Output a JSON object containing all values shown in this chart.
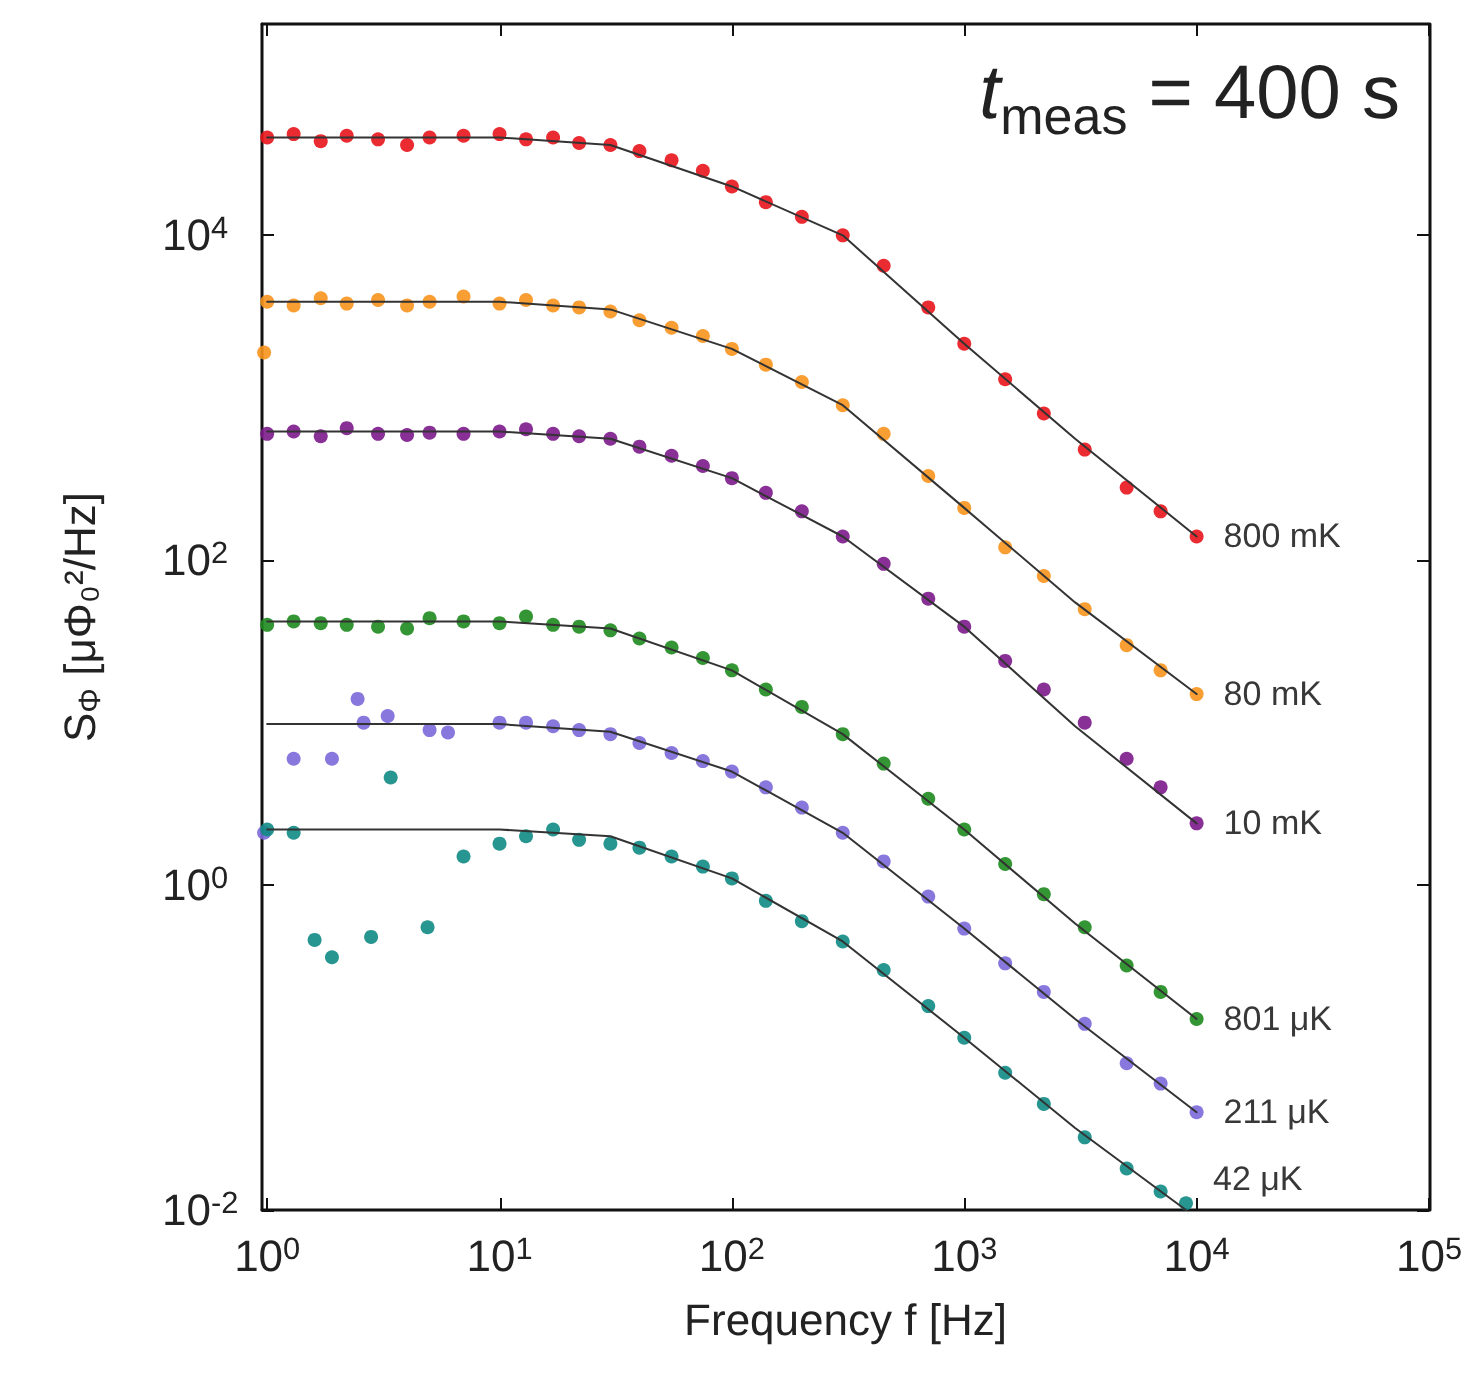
{
  "chart_data": {
    "type": "scatter",
    "xlabel": "Frequency f [Hz]",
    "ylabel": "S$_{Φ}$ [μΦ₀²/Hz]",
    "annotations": [
      "t$_{meas}$ = 400 s"
    ],
    "log": "xy",
    "grid": false,
    "legend": false,
    "marker": "circle",
    "xlim": [
      0.95,
      100000
    ],
    "ylim": [
      0.01,
      200000
    ],
    "xticks": [
      {
        "value": 1,
        "label": "10$^{0}$"
      },
      {
        "value": 10,
        "label": "10$^{1}$"
      },
      {
        "value": 100,
        "label": "10$^{2}$"
      },
      {
        "value": 1000,
        "label": "10$^{3}$"
      },
      {
        "value": 10000,
        "label": "10$^{4}$"
      },
      {
        "value": 100000,
        "label": "10$^{5}$"
      }
    ],
    "yticks": [
      {
        "value": 0.01,
        "label": "10$^{-2}$"
      },
      {
        "value": 1,
        "label": "10$^{0}$"
      },
      {
        "value": 100,
        "label": "10$^{2}$"
      },
      {
        "value": 10000,
        "label": "10$^{4}$"
      }
    ],
    "series": [
      {
        "name": "800 mK",
        "color": "#e8141c",
        "x": [
          1,
          1.3,
          1.7,
          2.2,
          3,
          4,
          5,
          7,
          10,
          13,
          17,
          22,
          30,
          40,
          55,
          75,
          100,
          140,
          200,
          300,
          450,
          700,
          1000,
          1500,
          2200,
          3300,
          5000,
          7000,
          10000
        ],
        "values": [
          40000,
          42000,
          38000,
          41000,
          39000,
          36000,
          40000,
          41000,
          42000,
          39000,
          40000,
          37000,
          36000,
          33000,
          29000,
          25000,
          20000,
          16000,
          13000,
          10000,
          6500,
          3600,
          2150,
          1300,
          800,
          480,
          280,
          200,
          140
        ]
      },
      {
        "name": "80 mK",
        "color": "#f7941d",
        "x": [
          0.97,
          1,
          1.3,
          1.7,
          2.2,
          3,
          4,
          5,
          7,
          10,
          13,
          17,
          22,
          30,
          40,
          55,
          75,
          100,
          140,
          200,
          300,
          450,
          700,
          1000,
          1500,
          2200,
          3300,
          5000,
          7000,
          10000
        ],
        "values": [
          1900,
          3900,
          3700,
          4100,
          3800,
          4000,
          3700,
          3900,
          4200,
          3800,
          4000,
          3700,
          3600,
          3400,
          3000,
          2700,
          2400,
          2000,
          1600,
          1250,
          900,
          600,
          330,
          210,
          120,
          80,
          50,
          30,
          21,
          15
        ]
      },
      {
        "name": "10 mK",
        "color": "#7b1a8a",
        "x": [
          1,
          1.3,
          1.7,
          2.2,
          3,
          4,
          5,
          7,
          10,
          13,
          17,
          22,
          30,
          40,
          55,
          75,
          100,
          140,
          200,
          300,
          450,
          700,
          1000,
          1500,
          2200,
          3300,
          5000,
          7000,
          10000
        ],
        "values": [
          600,
          620,
          580,
          650,
          600,
          590,
          610,
          600,
          620,
          640,
          600,
          580,
          560,
          500,
          440,
          380,
          320,
          260,
          200,
          140,
          95,
          58,
          39,
          24,
          16,
          10,
          6,
          4,
          2.4
        ]
      },
      {
        "name": "801 μK",
        "color": "#1e8a1e",
        "x": [
          1,
          1.3,
          1.7,
          2.2,
          3,
          4,
          5,
          7,
          10,
          13,
          17,
          22,
          30,
          40,
          55,
          75,
          100,
          140,
          200,
          300,
          450,
          700,
          1000,
          1500,
          2200,
          3300,
          5000,
          7000,
          10000
        ],
        "values": [
          40,
          42,
          41,
          40,
          39,
          38,
          44,
          42,
          41,
          45,
          40,
          39,
          37,
          33,
          29,
          25,
          21,
          16,
          12.5,
          8.5,
          5.6,
          3.4,
          2.2,
          1.35,
          0.88,
          0.55,
          0.32,
          0.22,
          0.15
        ]
      },
      {
        "name": "211 μK",
        "color": "#7b68d8",
        "x": [
          0.97,
          1.3,
          1.9,
          2.45,
          2.6,
          3.3,
          5,
          6,
          10,
          13,
          17,
          22,
          30,
          40,
          55,
          75,
          100,
          140,
          200,
          300,
          450,
          700,
          1000,
          1500,
          2200,
          3300,
          5000,
          7000,
          10000
        ],
        "values": [
          2.1,
          6,
          6,
          14,
          10,
          11,
          9,
          8.7,
          10,
          10,
          9.5,
          9,
          8.5,
          7.5,
          6.5,
          5.8,
          5,
          4,
          3,
          2.1,
          1.4,
          0.85,
          0.54,
          0.33,
          0.22,
          0.14,
          0.08,
          0.06,
          0.04
        ]
      },
      {
        "name": "42 μK",
        "color": "#0f8a84",
        "x": [
          1,
          1.3,
          1.6,
          1.9,
          2.8,
          3.4,
          4.9,
          7,
          10,
          13,
          17,
          22,
          30,
          40,
          55,
          75,
          100,
          140,
          200,
          300,
          450,
          700,
          1000,
          1500,
          2200,
          3300,
          5000,
          7000,
          9000
        ],
        "values": [
          2.2,
          2.1,
          0.46,
          0.36,
          0.48,
          4.6,
          0.55,
          1.5,
          1.8,
          2.0,
          2.2,
          1.9,
          1.8,
          1.7,
          1.5,
          1.3,
          1.1,
          0.8,
          0.6,
          0.45,
          0.3,
          0.18,
          0.115,
          0.07,
          0.045,
          0.028,
          0.018,
          0.013,
          0.011
        ]
      },
      {
        "type": "line",
        "color": "#333333",
        "x": [
          1,
          10,
          30,
          100,
          300,
          1000,
          3000,
          10000
        ],
        "marker": "none",
        "values": [
          40000,
          40000,
          36000,
          20000,
          10000,
          2150,
          560,
          140
        ]
      },
      {
        "type": "line",
        "color": "#333333",
        "x": [
          1,
          10,
          30,
          100,
          300,
          1000,
          3000,
          10000
        ],
        "marker": "none",
        "values": [
          3900,
          3900,
          3500,
          2000,
          900,
          210,
          55,
          15
        ]
      },
      {
        "type": "line",
        "color": "#333333",
        "x": [
          1,
          10,
          30,
          100,
          300,
          1000,
          3000,
          10000
        ],
        "marker": "none",
        "values": [
          620,
          620,
          560,
          320,
          140,
          39,
          9.5,
          2.4
        ]
      },
      {
        "type": "line",
        "color": "#333333",
        "x": [
          1,
          10,
          30,
          100,
          300,
          1000,
          3000,
          10000
        ],
        "marker": "none",
        "values": [
          42,
          42,
          38,
          21,
          8.5,
          2.2,
          0.58,
          0.15
        ]
      },
      {
        "type": "line",
        "color": "#333333",
        "x": [
          1,
          10,
          30,
          100,
          300,
          1000,
          3000,
          10000
        ],
        "marker": "none",
        "values": [
          9.8,
          9.8,
          8.8,
          5,
          2.1,
          0.54,
          0.15,
          0.04
        ]
      },
      {
        "type": "line",
        "color": "#333333",
        "x": [
          1,
          10,
          30,
          100,
          300,
          1000,
          3000,
          9000
        ],
        "marker": "none",
        "values": [
          2.2,
          2.2,
          2.0,
          1.1,
          0.45,
          0.115,
          0.032,
          0.01
        ]
      }
    ]
  }
}
